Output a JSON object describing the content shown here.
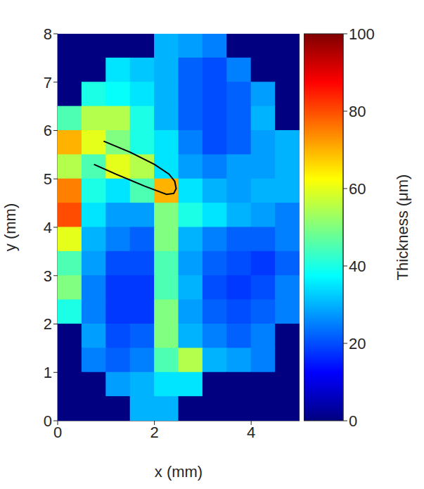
{
  "chart_data": {
    "type": "heatmap",
    "x_label": "x (mm)",
    "y_label": "y (mm)",
    "xlim": [
      0,
      5
    ],
    "ylim": [
      0,
      8
    ],
    "xticks": [
      0,
      2,
      4
    ],
    "yticks": [
      0,
      1,
      2,
      3,
      4,
      5,
      6,
      7,
      8
    ],
    "x": [
      0.25,
      0.75,
      1.25,
      1.75,
      2.25,
      2.75,
      3.25,
      3.75,
      4.25,
      4.75
    ],
    "y": [
      7.75,
      7.25,
      6.75,
      6.25,
      5.75,
      5.25,
      4.75,
      4.25,
      3.75,
      3.25,
      2.75,
      2.25,
      1.75,
      1.25,
      0.75,
      0.25
    ],
    "cells": [
      [
        0,
        0,
        0,
        0,
        30,
        28,
        25,
        0,
        0,
        0
      ],
      [
        0,
        0,
        35,
        32,
        30,
        22,
        20,
        25,
        0,
        0
      ],
      [
        0,
        40,
        38,
        35,
        30,
        22,
        20,
        22,
        28,
        0
      ],
      [
        45,
        55,
        55,
        40,
        30,
        22,
        20,
        22,
        30,
        0
      ],
      [
        70,
        60,
        50,
        40,
        35,
        25,
        20,
        22,
        28,
        30
      ],
      [
        55,
        45,
        60,
        55,
        35,
        28,
        25,
        28,
        28,
        30
      ],
      [
        75,
        40,
        35,
        45,
        70,
        35,
        30,
        28,
        30,
        30
      ],
      [
        80,
        35,
        28,
        28,
        50,
        40,
        35,
        30,
        28,
        25
      ],
      [
        60,
        30,
        25,
        22,
        50,
        30,
        25,
        22,
        22,
        25
      ],
      [
        45,
        28,
        20,
        20,
        45,
        28,
        22,
        20,
        18,
        22
      ],
      [
        50,
        25,
        18,
        18,
        45,
        30,
        20,
        18,
        20,
        25
      ],
      [
        40,
        25,
        18,
        18,
        50,
        28,
        22,
        20,
        22,
        25
      ],
      [
        0,
        28,
        20,
        22,
        50,
        30,
        25,
        22,
        25,
        0
      ],
      [
        0,
        25,
        22,
        25,
        45,
        55,
        30,
        28,
        25,
        0
      ],
      [
        0,
        0,
        28,
        30,
        35,
        35,
        0,
        0,
        0,
        0
      ],
      [
        0,
        0,
        0,
        30,
        30,
        0,
        0,
        0,
        0,
        0
      ]
    ],
    "colorbar": {
      "label": "Thickness (μm)",
      "range": [
        0,
        100
      ],
      "ticks": [
        0,
        20,
        40,
        60,
        80,
        100
      ]
    },
    "path": {
      "color": "#000000",
      "x": [
        0.95,
        1.5,
        2.0,
        2.3,
        2.42,
        2.45,
        2.4,
        2.25,
        1.8,
        1.2,
        0.75
      ],
      "y": [
        5.78,
        5.55,
        5.3,
        5.1,
        4.95,
        4.8,
        4.7,
        4.68,
        4.85,
        5.1,
        5.3
      ]
    }
  }
}
